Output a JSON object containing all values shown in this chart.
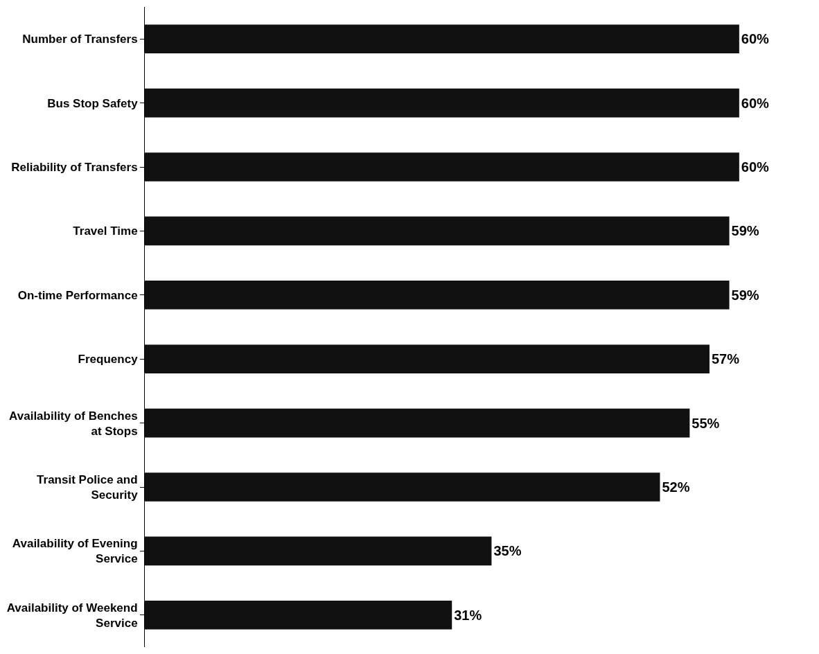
{
  "chart_data": {
    "type": "bar",
    "orientation": "horizontal",
    "categories": [
      "Number of Transfers",
      "Bus Stop Safety",
      "Reliability of Transfers",
      "Travel Time",
      "On-time Performance",
      "Frequency",
      "Availability of Benches at Stops",
      "Transit Police and Security",
      "Availability of Evening Service",
      "Availability of Weekend Service"
    ],
    "values": [
      60,
      60,
      60,
      59,
      59,
      57,
      55,
      52,
      35,
      31
    ],
    "value_labels": [
      "60%",
      "60%",
      "60%",
      "59%",
      "59%",
      "57%",
      "55%",
      "52%",
      "35%",
      "31%"
    ],
    "color": "#111111",
    "legend": false
  }
}
